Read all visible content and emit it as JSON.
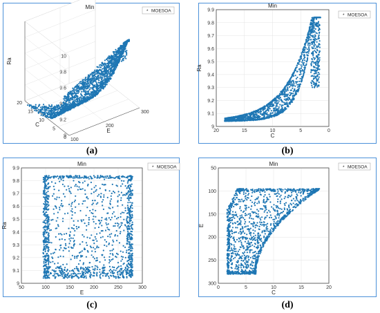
{
  "chart_data": [
    {
      "type": "scatter",
      "panel": "(a)",
      "projection": "3d",
      "title": "Min",
      "legend": "MOESOA",
      "legend_position": "top-right",
      "xlabel": "E",
      "ylabel": "C",
      "zlabel": "Ra",
      "xlim": [
        100,
        300
      ],
      "ylim": [
        0,
        20
      ],
      "zlim": [
        9,
        10
      ],
      "xticks": [
        "100",
        "200",
        "300"
      ],
      "yticks": [
        "0",
        "5",
        "10",
        "15",
        "20"
      ],
      "zticks": [
        "9",
        "9.2",
        "9.4",
        "9.6",
        "9.8",
        "10"
      ],
      "grid": true,
      "points_summary": "3D Pareto front surface: Ra rises from about 9.0 at high C / low E to about 9.85 at low C / high E"
    },
    {
      "type": "scatter",
      "panel": "(b)",
      "title": "Min",
      "legend": "MOESOA",
      "legend_position": "top-right",
      "xlabel": "C",
      "ylabel": "Ra",
      "xlim": [
        20,
        0
      ],
      "ylim": [
        9,
        9.9
      ],
      "xticks": [
        "20",
        "15",
        "10",
        "5",
        "0"
      ],
      "yticks": [
        "9",
        "9.1",
        "9.2",
        "9.3",
        "9.4",
        "9.5",
        "9.6",
        "9.7",
        "9.8",
        "9.9"
      ],
      "grid": true,
      "points_summary": "Band between C 1.5–18.5, Ra 9.04–9.84, rising steeply as C decreases"
    },
    {
      "type": "scatter",
      "panel": "(c)",
      "title": "Min",
      "legend": "MOESOA",
      "legend_position": "top-right",
      "xlabel": "E",
      "ylabel": "Ra",
      "xlim": [
        50,
        300
      ],
      "ylim": [
        9,
        9.9
      ],
      "xticks": [
        "50",
        "100",
        "150",
        "200",
        "250",
        "300"
      ],
      "yticks": [
        "9",
        "9.1",
        "9.2",
        "9.3",
        "9.4",
        "9.5",
        "9.6",
        "9.7",
        "9.8",
        "9.9"
      ],
      "grid": true,
      "points_summary": "Rectangle E 95–280, Ra 9.04–9.84, dense along all four edges"
    },
    {
      "type": "scatter",
      "panel": "(d)",
      "title": "Min",
      "legend": "MOESOA",
      "legend_position": "top-right",
      "xlabel": "C",
      "ylabel": "E",
      "xlim": [
        0,
        20
      ],
      "ylim": [
        300,
        50
      ],
      "xticks": [
        "0",
        "5",
        "10",
        "15",
        "20"
      ],
      "yticks": [
        "50",
        "100",
        "150",
        "200",
        "250",
        "300"
      ],
      "grid": true,
      "points_summary": "Region bounded by E 95–280, C 1.5–18.5, with lower-right boundary curving from (18.5,95) to (6.8,280)"
    }
  ],
  "colors": {
    "points": "#1f77b4",
    "frame": "#4a90d9",
    "grid": "#e3e3e3"
  }
}
